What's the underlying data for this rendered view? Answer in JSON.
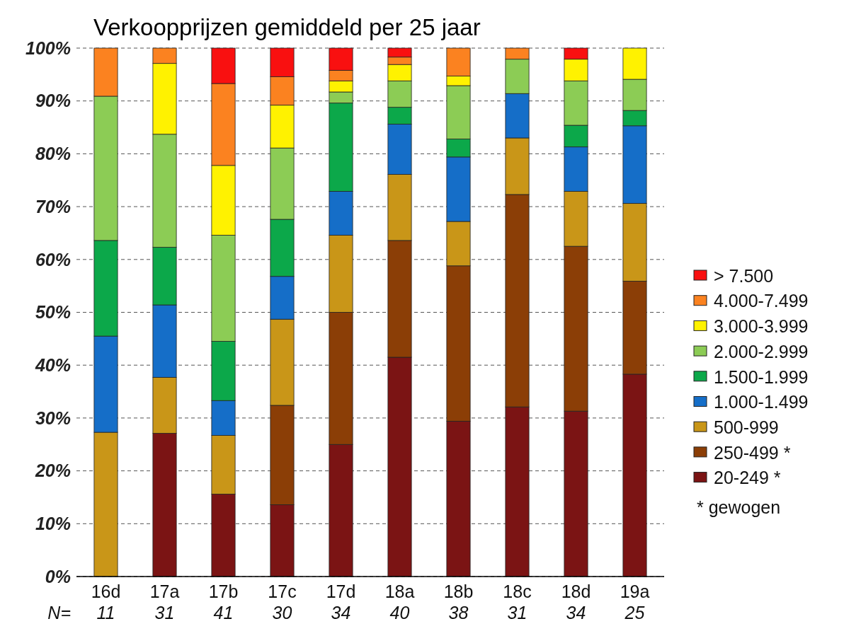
{
  "chart_data": {
    "type": "bar",
    "stacked": true,
    "title": "Verkoopprijzen gemiddeld per 25 jaar",
    "categories": [
      "16d",
      "17a",
      "17b",
      "17c",
      "17d",
      "18a",
      "18b",
      "18c",
      "18d",
      "19a"
    ],
    "series": [
      {
        "name": "20-249 *",
        "color": "#7b1414",
        "values": [
          0,
          27.1,
          15.6,
          13.6,
          25,
          41.5,
          29.4,
          32.1,
          31.3,
          38.3
        ]
      },
      {
        "name": "250-499 *",
        "color": "#8b3e06",
        "values": [
          0,
          0,
          0,
          18.8,
          25,
          22.1,
          29.4,
          40.2,
          31.2,
          17.6
        ]
      },
      {
        "name": "500-999",
        "color": "#c99618",
        "values": [
          27.3,
          10.6,
          11.1,
          16.3,
          14.6,
          12.5,
          8.4,
          10.7,
          10.4,
          14.7
        ]
      },
      {
        "name": "1.000-1.499",
        "color": "#156ec8",
        "values": [
          18.2,
          13.7,
          6.6,
          8.1,
          8.3,
          9.5,
          12.2,
          8.4,
          8.4,
          14.7
        ]
      },
      {
        "name": "1.500-1.999",
        "color": "#0ca84a",
        "values": [
          18.1,
          10.9,
          11.2,
          10.8,
          16.7,
          3.2,
          3.4,
          0,
          4.1,
          2.9
        ]
      },
      {
        "name": "2.000-2.999",
        "color": "#8ccc55",
        "values": [
          27.3,
          21.4,
          20.1,
          13.5,
          2.1,
          5.0,
          10.1,
          6.5,
          8.4,
          5.9
        ]
      },
      {
        "name": "3.000-3.999",
        "color": "#fff200",
        "values": [
          0,
          13.4,
          13.2,
          8.1,
          2.1,
          3.1,
          1.8,
          0,
          4.1,
          5.9
        ]
      },
      {
        "name": "4.000-7.499",
        "color": "#fb8220",
        "values": [
          9.1,
          2.9,
          15.5,
          5.4,
          2.0,
          1.4,
          5.3,
          2.1,
          0,
          0
        ]
      },
      {
        "name": "> 7.500",
        "color": "#f91010",
        "values": [
          0,
          0,
          6.7,
          5.4,
          4.2,
          1.7,
          0,
          0,
          2.1,
          0
        ]
      }
    ],
    "ylim": [
      0,
      100
    ],
    "yticks": [
      {
        "value": 0,
        "label": "0%"
      },
      {
        "value": 10,
        "label": "10%"
      },
      {
        "value": 20,
        "label": "20%"
      },
      {
        "value": 30,
        "label": "30%"
      },
      {
        "value": 40,
        "label": "40%"
      },
      {
        "value": 50,
        "label": "50%"
      },
      {
        "value": 60,
        "label": "60%"
      },
      {
        "value": 70,
        "label": "70%"
      },
      {
        "value": 80,
        "label": "80%"
      },
      {
        "value": 90,
        "label": "90%"
      },
      {
        "value": 100,
        "label": "100%"
      }
    ],
    "grid": "y",
    "legend": "right",
    "annotations": [
      "N=",
      "* gewogen",
      "11",
      "31",
      "41",
      "30",
      "34",
      "40",
      "38",
      "31",
      "34",
      "25"
    ]
  }
}
